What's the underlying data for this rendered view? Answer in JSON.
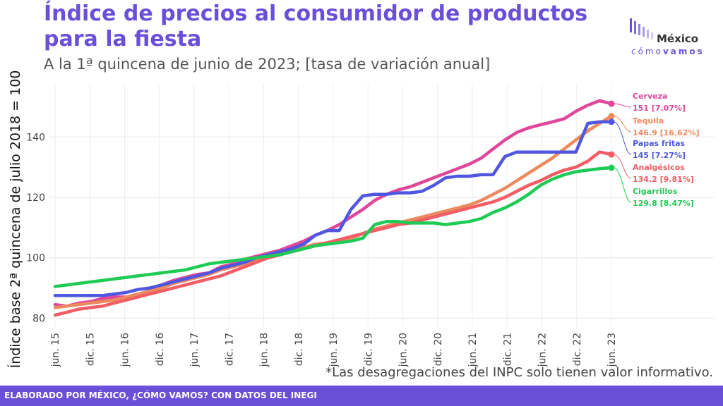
{
  "title": "Índice de precios al consumidor de productos para la fiesta",
  "subtitle": "A la 1ª quincena de junio de 2023; [tasa de variación anual]",
  "logo": {
    "main": "México",
    "sub_light": "cómo",
    "sub_bold": "vamos"
  },
  "note": "*Las desagregaciones del INPC solo tienen valor informativo.",
  "footer": "ELABORADO POR MÉXICO, ¿CÓMO VAMOS? CON DATOS DEL INEGI",
  "colors": {
    "Cerveza": "#E0479A",
    "Tequila": "#EC8A5E",
    "Papas fritas": "#4F57E0",
    "Analgésicos": "#F25C64",
    "Cigarrillos": "#1FCB55",
    "accent": "#6A4FD8"
  },
  "chart_data": {
    "type": "line",
    "title": "Índice de precios al consumidor de productos para la fiesta",
    "xlabel": "",
    "ylabel": "Índice base 2ª quincena de julio 2018 = 100",
    "x_tick_labels": [
      "jun. 15",
      "dic. 15",
      "jun. 16",
      "dic. 16",
      "jun. 17",
      "dic. 17",
      "jun. 18",
      "dic. 18",
      "jun. 19",
      "dic. 19",
      "jun. 20",
      "dic. 20",
      "jun. 21",
      "dic. 21",
      "jun. 22",
      "dic. 22",
      "jun. 23"
    ],
    "y_ticks": [
      80,
      100,
      120,
      140
    ],
    "ylim": [
      78,
      155
    ],
    "grid": true,
    "legend": "direct labels at right end of lines",
    "series": [
      {
        "name": "Cerveza",
        "last_label": "151 [7.07%]",
        "values": [
          84.5,
          84,
          85,
          85.5,
          86.5,
          87,
          87,
          87.5,
          89,
          91,
          92.5,
          93.5,
          94.5,
          95,
          97,
          98,
          99.5,
          100.5,
          101.5,
          102.5,
          104,
          105.5,
          107.5,
          109,
          111,
          113.5,
          116,
          119,
          121,
          122.5,
          123.5,
          125,
          126.5,
          128,
          129.5,
          131,
          133,
          136,
          139,
          141.5,
          143,
          144,
          145,
          146,
          148.5,
          150.5,
          152,
          151
        ]
      },
      {
        "name": "Tequila",
        "last_label": "146.9 [16.62%]",
        "values": [
          83.5,
          84,
          84.5,
          85,
          85.5,
          86,
          87,
          88,
          89,
          90,
          91.5,
          92.5,
          93.5,
          94.5,
          96,
          97,
          98,
          99,
          100,
          101,
          102.5,
          103.5,
          104.5,
          105,
          105.5,
          106.5,
          108,
          109.5,
          110.5,
          111.5,
          112.5,
          113.5,
          114.5,
          115.5,
          116.5,
          117.5,
          119,
          121,
          123,
          125.5,
          128,
          130.5,
          133,
          136,
          139,
          142,
          144.5,
          146.9
        ]
      },
      {
        "name": "Papas fritas",
        "last_label": "145 [7.27%]",
        "values": [
          87.5,
          87.5,
          87.5,
          87.5,
          87.5,
          88,
          88.5,
          89.5,
          90,
          91,
          92,
          93,
          94,
          95,
          96.5,
          97.5,
          98.5,
          100,
          101,
          102,
          103,
          104.5,
          107.5,
          109,
          109,
          116,
          120.5,
          121,
          121,
          121.5,
          121.5,
          122,
          124,
          126.5,
          127,
          127,
          127.5,
          127.5,
          133.5,
          135,
          135,
          135,
          135,
          135,
          135,
          144.5,
          145,
          145
        ]
      },
      {
        "name": "Analgésicos",
        "last_label": "134.2 [9.81%]",
        "values": [
          81,
          82,
          83,
          83.5,
          84,
          85,
          86,
          87,
          88,
          89,
          90,
          91,
          92,
          93,
          94,
          95.5,
          97,
          98.5,
          100,
          101,
          102,
          103,
          104,
          105,
          106,
          107,
          108,
          109,
          110,
          111,
          111.5,
          112.5,
          113.5,
          114.5,
          115.5,
          116.5,
          117.5,
          118.5,
          120,
          122,
          124,
          125.5,
          127.5,
          129,
          130,
          132,
          135,
          134.2
        ]
      },
      {
        "name": "Cigarrillos",
        "last_label": "129.8 [8.47%]",
        "values": [
          90.5,
          91,
          91.5,
          92,
          92.5,
          93,
          93.5,
          94,
          94.5,
          95,
          95.5,
          96,
          97,
          98,
          98.5,
          99,
          99.5,
          100,
          100.5,
          101,
          102,
          103,
          104,
          104.5,
          105,
          105.5,
          106.5,
          111,
          112,
          112,
          111.5,
          111.5,
          111.5,
          111,
          111.5,
          112,
          113,
          115,
          116.5,
          118.5,
          121,
          124,
          126,
          127.5,
          128.5,
          129,
          129.5,
          129.8
        ]
      }
    ]
  }
}
